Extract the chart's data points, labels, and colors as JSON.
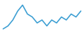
{
  "y_values": [
    1,
    2,
    4,
    7,
    9,
    6,
    5,
    3,
    4,
    2,
    4,
    3,
    5,
    4,
    6,
    5,
    7
  ],
  "line_color": "#3d9fd3",
  "line_width": 1.2,
  "background_color": "#ffffff",
  "ylim": [
    0.5,
    10.5
  ]
}
